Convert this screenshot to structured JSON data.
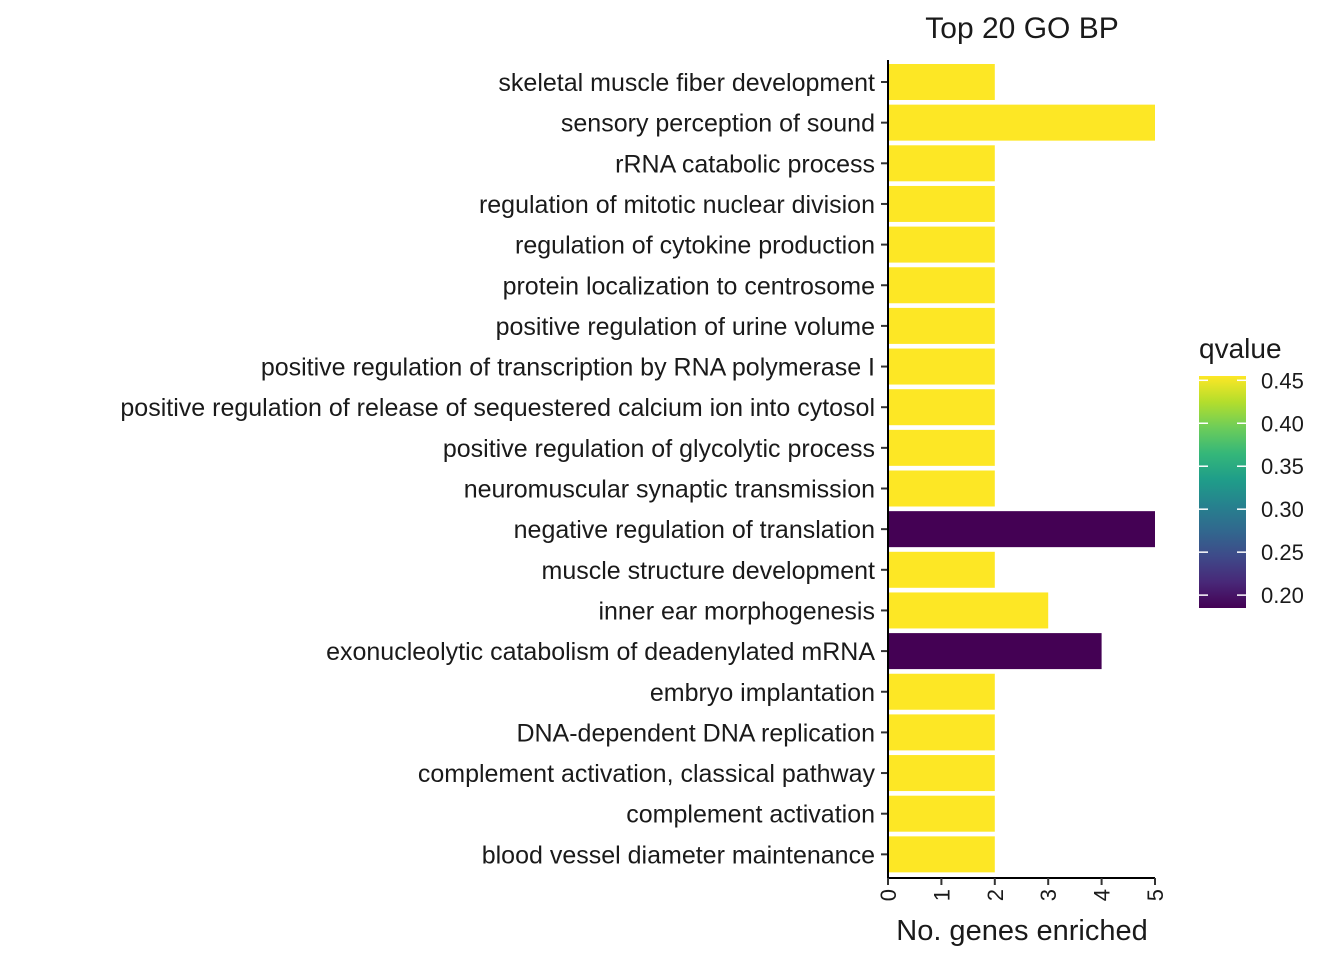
{
  "chart_data": {
    "type": "bar",
    "orientation": "horizontal",
    "title": "Top 20 GO BP",
    "xlabel": "No. genes enriched",
    "ylabel": "",
    "xlim": [
      0,
      5
    ],
    "x_ticks": [
      0,
      1,
      2,
      3,
      4,
      5
    ],
    "grid": false,
    "categories": [
      "skeletal muscle fiber development",
      "sensory perception of sound",
      "rRNA catabolic process",
      "regulation of mitotic nuclear division",
      "regulation of cytokine production",
      "protein localization to centrosome",
      "positive regulation of urine volume",
      "positive regulation of transcription by RNA polymerase I",
      "positive regulation of release of sequestered calcium ion into cytosol",
      "positive regulation of glycolytic process",
      "neuromuscular synaptic transmission",
      "negative regulation of translation",
      "muscle structure development",
      "inner ear morphogenesis",
      "exonucleolytic catabolism of deadenylated mRNA",
      "embryo implantation",
      "DNA-dependent DNA replication",
      "complement activation, classical pathway",
      "complement activation",
      "blood vessel diameter maintenance"
    ],
    "values": [
      2,
      5,
      2,
      2,
      2,
      2,
      2,
      2,
      2,
      2,
      2,
      5,
      2,
      3,
      4,
      2,
      2,
      2,
      2,
      2
    ],
    "qvalues": [
      0.455,
      0.455,
      0.455,
      0.455,
      0.455,
      0.455,
      0.455,
      0.455,
      0.455,
      0.455,
      0.455,
      0.185,
      0.455,
      0.455,
      0.185,
      0.455,
      0.455,
      0.455,
      0.455,
      0.455
    ],
    "legend": {
      "title": "qvalue",
      "placement": "right",
      "range": [
        0.185,
        0.455
      ],
      "ticks": [
        0.45,
        0.4,
        0.35,
        0.3,
        0.25,
        0.2
      ],
      "tick_labels": [
        "0.45",
        "0.40",
        "0.35",
        "0.30",
        "0.25",
        "0.20"
      ],
      "colormap": "viridis",
      "colors": [
        "#440154",
        "#482878",
        "#3E4A89",
        "#31688E",
        "#26828E",
        "#1F9E89",
        "#35B779",
        "#6DCD59",
        "#B4DE2C",
        "#FDE725"
      ]
    }
  }
}
